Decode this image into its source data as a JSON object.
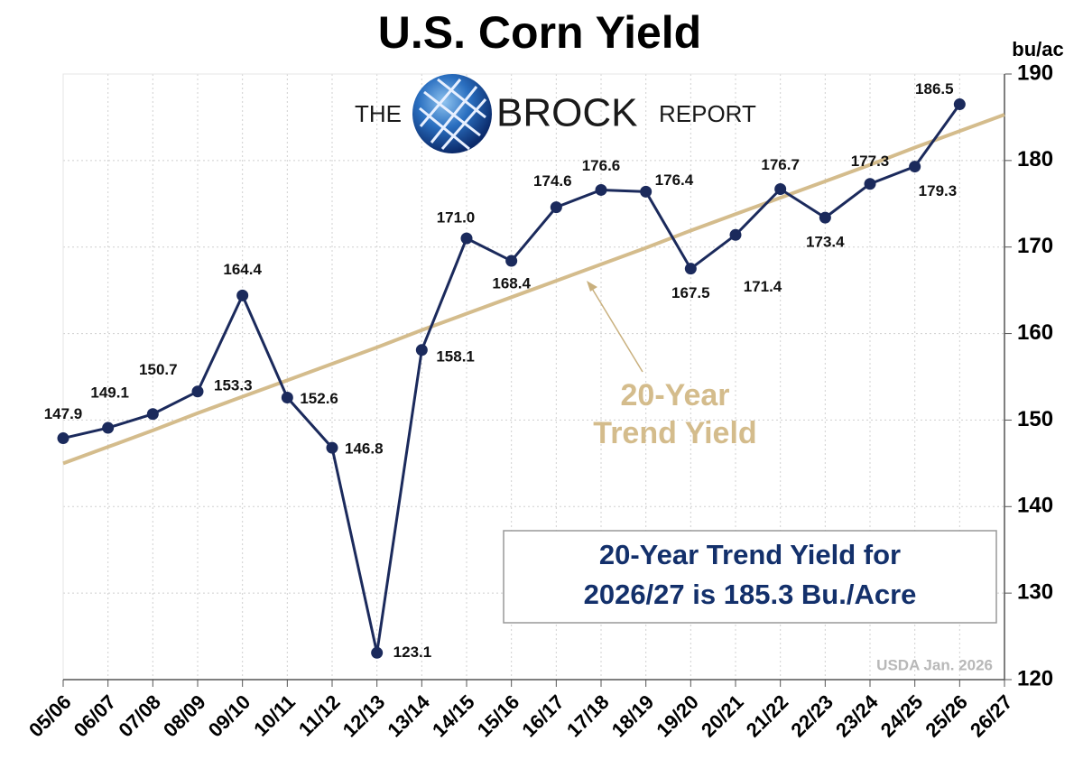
{
  "chart_data": {
    "type": "line",
    "title": "U.S. Corn Yield",
    "y_unit": "bu/ac",
    "logo": {
      "left": "THE",
      "main": "BROCK",
      "right": "REPORT"
    },
    "categories": [
      "05/06",
      "06/07",
      "07/08",
      "08/09",
      "09/10",
      "10/11",
      "11/12",
      "12/13",
      "13/14",
      "14/15",
      "15/16",
      "16/17",
      "17/18",
      "18/19",
      "19/20",
      "20/21",
      "21/22",
      "22/23",
      "23/24",
      "24/25",
      "25/26",
      "26/27"
    ],
    "series": [
      {
        "color": "#1b2a5c",
        "values": [
          147.9,
          149.1,
          150.7,
          153.3,
          164.4,
          152.6,
          146.8,
          123.1,
          158.1,
          171.0,
          168.4,
          174.6,
          176.6,
          176.4,
          167.5,
          171.4,
          176.7,
          173.4,
          177.3,
          179.3,
          186.5,
          null
        ],
        "value_labels": [
          "147.9",
          "149.1",
          "150.7",
          "153.3",
          "164.4",
          "152.6",
          "146.8",
          "123.1",
          "158.1",
          "171.0",
          "168.4",
          "174.6",
          "176.6",
          "176.4",
          "167.5",
          "171.4",
          "176.7",
          "173.4",
          "177.3",
          "179.3",
          "186.5",
          null
        ]
      },
      {
        "color": "#d4bc8c",
        "values": [
          145.0,
          146.9,
          148.8,
          150.8,
          152.7,
          154.6,
          156.5,
          158.4,
          160.4,
          162.3,
          164.2,
          166.1,
          168.0,
          169.9,
          171.9,
          173.8,
          175.7,
          177.6,
          179.5,
          181.5,
          183.4,
          185.3
        ]
      }
    ],
    "annotation": [
      "20-Year",
      "Trend Yield"
    ],
    "callout": [
      "20-Year Trend Yield for",
      "2026/27 is 185.3 Bu./Acre"
    ],
    "source": "USDA Jan. 2026",
    "ylim": [
      120,
      190
    ],
    "yticks": [
      120,
      130,
      140,
      150,
      160,
      170,
      180,
      190
    ],
    "grid": true
  }
}
